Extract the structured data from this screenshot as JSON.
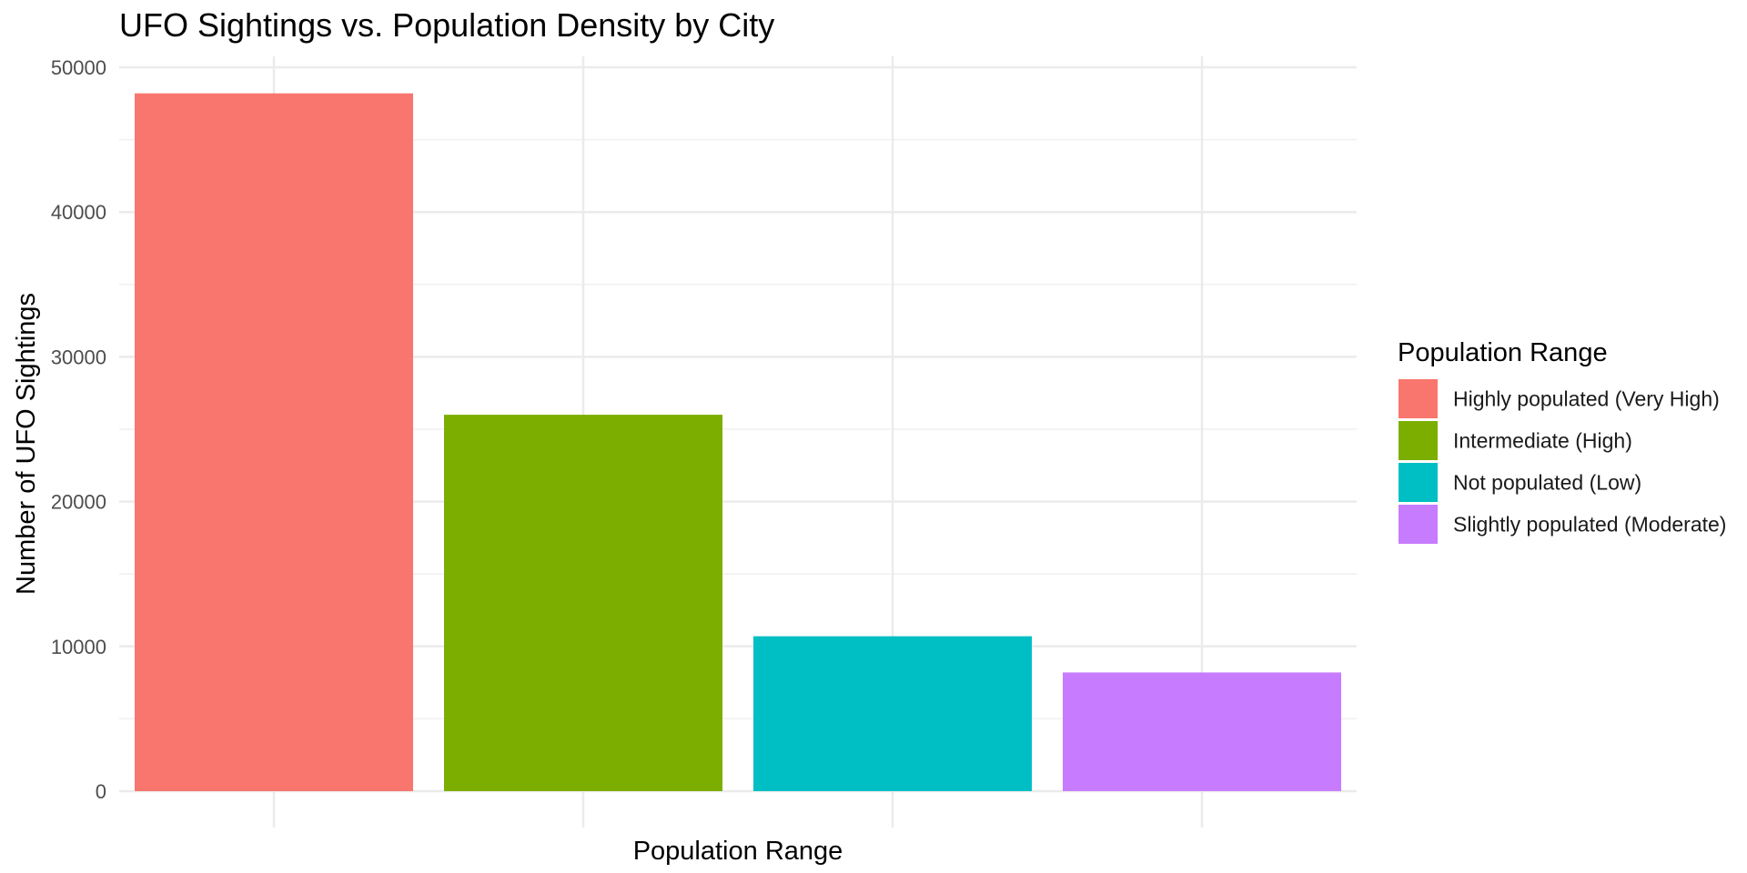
{
  "chart_data": {
    "type": "bar",
    "title": "UFO Sightings vs. Population Density by City",
    "xlabel": "Population Range",
    "ylabel": "Number of UFO Sightings",
    "categories": [
      "Highly populated (Very High)",
      "Intermediate (High)",
      "Not populated (Low)",
      "Slightly populated (Moderate)"
    ],
    "values": [
      48200,
      26000,
      10700,
      8200
    ],
    "colors": [
      "#F8766D",
      "#7CAE00",
      "#00BFC4",
      "#C77CFF"
    ],
    "ylim": [
      0,
      50000
    ],
    "yticks": [
      "0",
      "10000",
      "20000",
      "30000",
      "40000",
      "50000"
    ],
    "x_tick_labels_shown": false,
    "grid": true,
    "legend": {
      "title": "Population Range",
      "position": "right",
      "items": [
        "Highly populated (Very High)",
        "Intermediate (High)",
        "Not populated (Low)",
        "Slightly populated (Moderate)"
      ]
    }
  }
}
